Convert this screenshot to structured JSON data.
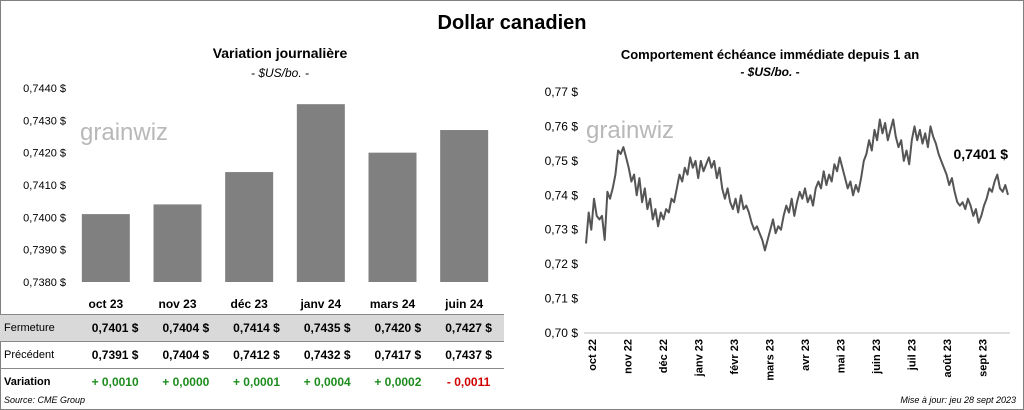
{
  "title": "Dollar canadien",
  "left": {
    "title": "Variation  journalière",
    "units": "- $US/bo. -",
    "watermark": "grainwiz",
    "chart_data": {
      "type": "bar",
      "categories": [
        "oct 23",
        "nov 23",
        "déc 23",
        "janv 24",
        "mars 24",
        "juin 24"
      ],
      "values": [
        0.7401,
        0.7404,
        0.7414,
        0.7435,
        0.742,
        0.7427
      ],
      "ylim": [
        0.738,
        0.744
      ],
      "yticks": [
        "0,7380 $",
        "0,7390 $",
        "0,7400 $",
        "0,7410 $",
        "0,7420 $",
        "0,7430 $",
        "0,7440 $"
      ],
      "bar_color": "#808080"
    },
    "table": {
      "rows": [
        {
          "label": "Fermeture",
          "values": [
            "0,7401  $",
            "0,7404  $",
            "0,7414  $",
            "0,7435  $",
            "0,7420  $",
            "0,7427  $"
          ]
        },
        {
          "label": "Précédent",
          "values": [
            "0,7391  $",
            "0,7404  $",
            "0,7412  $",
            "0,7432  $",
            "0,7417  $",
            "0,7437  $"
          ]
        },
        {
          "label": "Variation",
          "values": [
            "+ 0,0010",
            "+ 0,0000",
            "+ 0,0001",
            "+ 0,0004",
            "+ 0,0002",
            "- 0,0011"
          ],
          "signs": [
            "pos",
            "pos",
            "pos",
            "pos",
            "pos",
            "neg"
          ]
        }
      ]
    }
  },
  "right": {
    "title": "Comportement échéance immédiate depuis 1 an",
    "units": "- $US/bo. -",
    "watermark": "grainwiz",
    "chart_data": {
      "type": "line",
      "ylim": [
        0.7,
        0.77
      ],
      "yticks": [
        "0,70 $",
        "0,71 $",
        "0,72 $",
        "0,73 $",
        "0,74 $",
        "0,75 $",
        "0,76 $",
        "0,77 $"
      ],
      "xticks": [
        "oct 22",
        "nov 22",
        "déc 22",
        "janv 23",
        "févr 23",
        "mars 23",
        "avr 23",
        "mai 23",
        "juin 23",
        "juil 23",
        "août 23",
        "sept 23"
      ],
      "last_label": "0,7401 $",
      "line_color": "#555555",
      "values": [
        0.726,
        0.735,
        0.73,
        0.739,
        0.734,
        0.733,
        0.734,
        0.727,
        0.741,
        0.739,
        0.742,
        0.746,
        0.753,
        0.752,
        0.754,
        0.751,
        0.748,
        0.744,
        0.746,
        0.74,
        0.745,
        0.738,
        0.742,
        0.736,
        0.739,
        0.733,
        0.736,
        0.731,
        0.735,
        0.733,
        0.736,
        0.735,
        0.739,
        0.738,
        0.742,
        0.746,
        0.744,
        0.748,
        0.746,
        0.751,
        0.748,
        0.75,
        0.745,
        0.75,
        0.747,
        0.749,
        0.751,
        0.748,
        0.75,
        0.745,
        0.748,
        0.742,
        0.739,
        0.742,
        0.738,
        0.736,
        0.739,
        0.735,
        0.74,
        0.736,
        0.737,
        0.735,
        0.732,
        0.73,
        0.731,
        0.729,
        0.727,
        0.724,
        0.727,
        0.73,
        0.733,
        0.729,
        0.731,
        0.73,
        0.734,
        0.737,
        0.735,
        0.739,
        0.734,
        0.738,
        0.741,
        0.739,
        0.742,
        0.738,
        0.74,
        0.737,
        0.742,
        0.744,
        0.742,
        0.747,
        0.743,
        0.746,
        0.744,
        0.749,
        0.747,
        0.751,
        0.748,
        0.745,
        0.742,
        0.744,
        0.74,
        0.743,
        0.741,
        0.745,
        0.75,
        0.752,
        0.756,
        0.753,
        0.759,
        0.756,
        0.762,
        0.758,
        0.761,
        0.756,
        0.759,
        0.762,
        0.757,
        0.754,
        0.756,
        0.75,
        0.753,
        0.749,
        0.756,
        0.76,
        0.756,
        0.759,
        0.755,
        0.758,
        0.754,
        0.76,
        0.757,
        0.755,
        0.752,
        0.75,
        0.748,
        0.746,
        0.743,
        0.745,
        0.741,
        0.738,
        0.737,
        0.738,
        0.736,
        0.739,
        0.737,
        0.734,
        0.736,
        0.732,
        0.734,
        0.737,
        0.739,
        0.742,
        0.741,
        0.744,
        0.746,
        0.742,
        0.741,
        0.743,
        0.7401
      ]
    }
  },
  "footer": {
    "source": "Source: CME Group",
    "updated": "Mise à jour: jeu 28 sept 2023"
  }
}
